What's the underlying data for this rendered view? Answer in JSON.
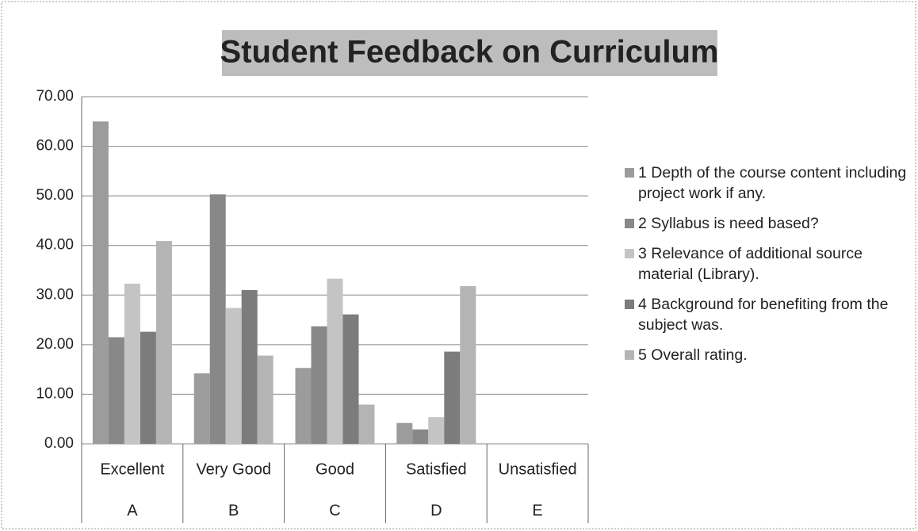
{
  "chart_data": {
    "type": "bar",
    "title": "Student Feedback on Curriculum",
    "categories": [
      "Excellent",
      "Very Good",
      "Good",
      "Satisfied",
      "Unsatisfied"
    ],
    "category_letters": [
      "A",
      "B",
      "C",
      "D",
      "E"
    ],
    "series": [
      {
        "name": "1 Depth of the course content including project work if any.",
        "color": "#9c9c9c",
        "values": [
          65,
          14.2,
          15.3,
          4.2,
          0
        ]
      },
      {
        "name": "2 Syllabus is need based?",
        "color": "#888888",
        "values": [
          21.5,
          50.3,
          23.7,
          2.9,
          0
        ]
      },
      {
        "name": "3 Relevance of additional source material (Library).",
        "color": "#c4c4c4",
        "values": [
          32.3,
          27.4,
          33.3,
          5.4,
          0
        ]
      },
      {
        "name": "4 Background for benefiting from the subject was.",
        "color": "#7c7c7c",
        "values": [
          22.6,
          31.0,
          26.1,
          18.6,
          0
        ]
      },
      {
        "name": "5 Overall rating.",
        "color": "#b4b4b4",
        "values": [
          40.9,
          17.8,
          7.9,
          31.8,
          0
        ]
      }
    ],
    "ylim": [
      0,
      70
    ],
    "yticks": [
      {
        "value": 0,
        "label": "0.00"
      },
      {
        "value": 10,
        "label": "10.00"
      },
      {
        "value": 20,
        "label": "20.00"
      },
      {
        "value": 30,
        "label": "30.00"
      },
      {
        "value": 40,
        "label": "40.00"
      },
      {
        "value": 50,
        "label": "50.00"
      },
      {
        "value": 60,
        "label": "60.00"
      },
      {
        "value": 70,
        "label": "70.00"
      }
    ],
    "grid": true
  }
}
